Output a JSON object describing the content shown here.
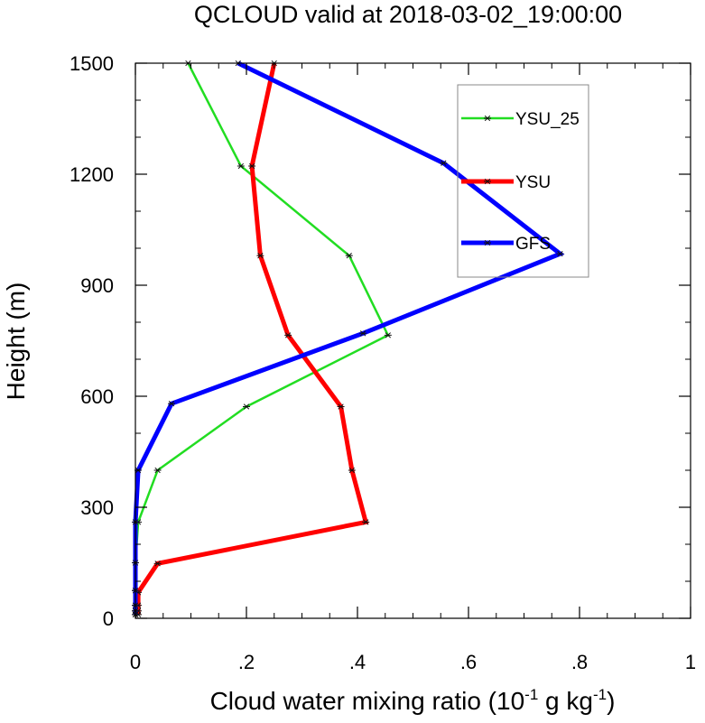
{
  "chart_data": {
    "type": "line",
    "title": "QCLOUD valid at 2018-03-02_19:00:00",
    "xlabel": {
      "pre": "Cloud water mixing ratio (10",
      "exp1": "-1",
      "mid": " g kg",
      "exp2": "-1",
      "post": ")"
    },
    "ylabel": "Height (m)",
    "xlim": [
      0,
      1
    ],
    "ylim": [
      0,
      1500
    ],
    "x_ticks": [
      {
        "value": 0,
        "label": "0"
      },
      {
        "value": 0.2,
        "label": ".2"
      },
      {
        "value": 0.4,
        "label": ".4"
      },
      {
        "value": 0.6,
        "label": ".6"
      },
      {
        "value": 0.8,
        "label": ".8"
      },
      {
        "value": 1,
        "label": "1"
      }
    ],
    "y_ticks": [
      {
        "value": 0,
        "label": "0"
      },
      {
        "value": 300,
        "label": "300"
      },
      {
        "value": 600,
        "label": "600"
      },
      {
        "value": 900,
        "label": "900"
      },
      {
        "value": 1200,
        "label": "1200"
      },
      {
        "value": 1500,
        "label": "1500"
      }
    ],
    "legend_position": "top-right",
    "marker": "asterisk",
    "series": [
      {
        "name": "YSU_25",
        "color": "#22dd22",
        "width": "thin",
        "points": [
          [
            0,
            10
          ],
          [
            0,
            20
          ],
          [
            0,
            35
          ],
          [
            0,
            75
          ],
          [
            0,
            150
          ],
          [
            0.005,
            260
          ],
          [
            0.04,
            400
          ],
          [
            0.2,
            572
          ],
          [
            0.455,
            765
          ],
          [
            0.385,
            980
          ],
          [
            0.19,
            1222
          ],
          [
            0.095,
            1500
          ]
        ]
      },
      {
        "name": "YSU",
        "color": "#ff0000",
        "width": "thick",
        "points": [
          [
            0.005,
            10
          ],
          [
            0.005,
            20
          ],
          [
            0.005,
            35
          ],
          [
            0.005,
            70
          ],
          [
            0.04,
            148
          ],
          [
            0.415,
            260
          ],
          [
            0.39,
            400
          ],
          [
            0.37,
            572
          ],
          [
            0.275,
            765
          ],
          [
            0.225,
            980
          ],
          [
            0.21,
            1222
          ],
          [
            0.25,
            1500
          ]
        ]
      },
      {
        "name": "GFS",
        "color": "#0000ff",
        "width": "thick",
        "points": [
          [
            0,
            10
          ],
          [
            0,
            20
          ],
          [
            0,
            35
          ],
          [
            0,
            75
          ],
          [
            0,
            150
          ],
          [
            0,
            260
          ],
          [
            0.005,
            400
          ],
          [
            0.065,
            580
          ],
          [
            0.41,
            770
          ],
          [
            0.765,
            985
          ],
          [
            0.555,
            1230
          ],
          [
            0.185,
            1500
          ]
        ]
      }
    ]
  }
}
